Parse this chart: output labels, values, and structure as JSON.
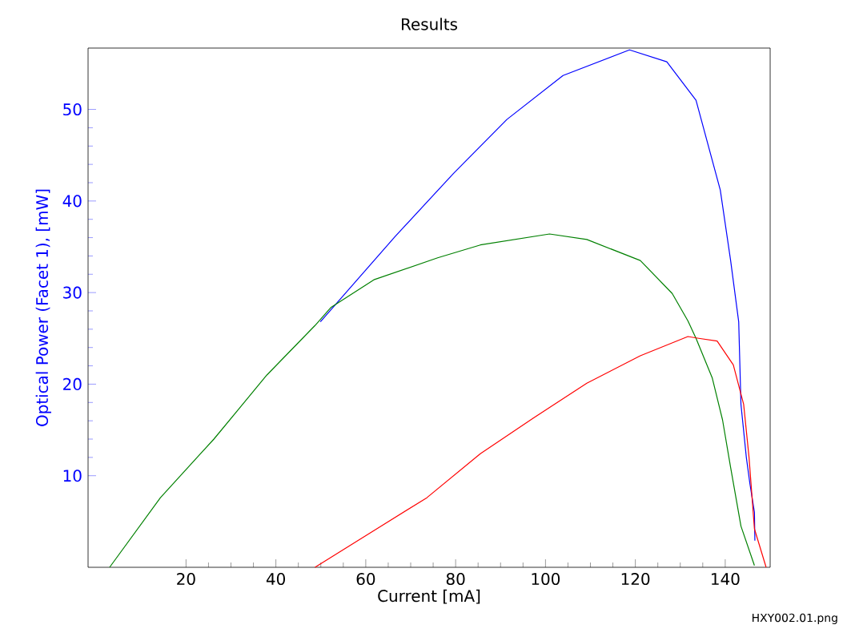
{
  "chart_data": {
    "type": "line",
    "title": "Results",
    "xlabel": "Current [mA]",
    "ylabel": "Optical Power (Facet 1), [mW]",
    "annotations": [
      "HXY002.01.png"
    ],
    "xlim": [
      -1.8,
      150
    ],
    "ylim": [
      0,
      56.7
    ],
    "xticks": [
      20,
      40,
      60,
      80,
      100,
      120,
      140
    ],
    "yticks": [
      10,
      20,
      30,
      40,
      50
    ],
    "grid": false,
    "marker": "none",
    "line_style": "solid",
    "series": [
      {
        "color": "#0000ff",
        "x": [
          49.9,
          66.5,
          79.5,
          91.4,
          103.9,
          118.7,
          127,
          133.5,
          138.9,
          141.2,
          143,
          143.5,
          144.7,
          145.5,
          146.5,
          146.6
        ],
        "values": [
          26.8,
          36.1,
          43.0,
          48.9,
          53.7,
          56.5,
          55.2,
          51.0,
          41.2,
          33.5,
          26.8,
          17.8,
          12.0,
          9.1,
          6.0,
          2.9
        ]
      },
      {
        "color": "#008000",
        "x": [
          3.0,
          14.3,
          26.2,
          38,
          48.7,
          52.3,
          61.8,
          76,
          85.5,
          100.9,
          109.2,
          121.1,
          128.2,
          131.7,
          133.5,
          137.1,
          139.4,
          141.2,
          143.5,
          146.5
        ],
        "values": [
          0,
          7.6,
          14.0,
          21.0,
          26.4,
          28.4,
          31.4,
          33.8,
          35.2,
          36.4,
          35.8,
          33.5,
          29.9,
          26.9,
          25.0,
          20.7,
          16.1,
          10.9,
          4.5,
          0.2
        ]
      },
      {
        "color": "#ff0000",
        "x": [
          48.7,
          61.8,
          73.6,
          85.5,
          97.3,
          109.2,
          121.1,
          131.7,
          134.1,
          138.2,
          141.8,
          144.1,
          145.3,
          146.5,
          149.1
        ],
        "values": [
          0,
          4.0,
          7.6,
          12.4,
          16.3,
          20.1,
          23.1,
          25.2,
          25.0,
          24.7,
          22.1,
          17.8,
          12.0,
          4.2,
          0
        ]
      }
    ]
  }
}
